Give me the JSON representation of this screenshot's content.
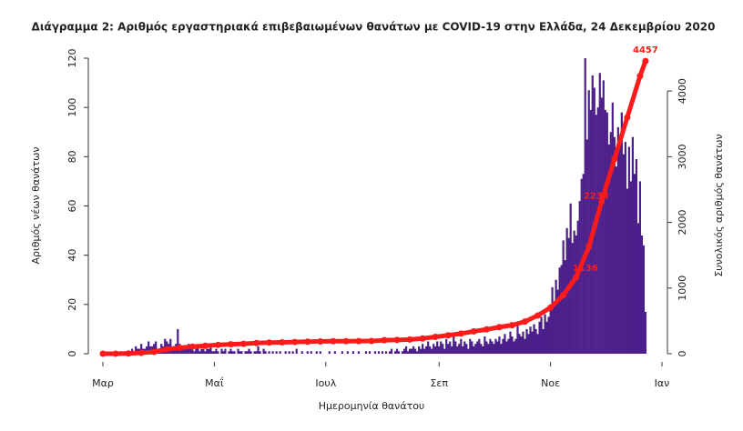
{
  "chart_data": {
    "type": "bar",
    "title": "Διάγραμμα 2: Αριθμός εργαστηριακά επιβεβαιωμένων θανάτων με COVID-19 στην Ελλάδα, 24 Δεκεμβρίου 2020",
    "xlabel": "Ημερομηνία θανάτου",
    "ylabel": "Αριθμός νέων θανάτων",
    "y2label": "Συνολικός αριθμός θανάτων",
    "color": "#4b1e8a",
    "x": [
      0,
      1,
      2,
      3,
      4,
      5,
      6,
      7,
      8,
      9,
      10,
      11,
      12,
      13,
      14,
      15,
      16,
      17,
      18,
      19,
      20,
      21,
      22,
      23,
      24,
      25,
      26,
      27,
      28,
      29,
      30,
      31,
      32,
      33,
      34,
      35,
      36,
      37,
      38,
      39,
      40,
      41,
      42,
      43,
      44,
      45,
      46,
      47,
      48,
      49,
      50,
      51,
      52,
      53,
      54,
      55,
      56,
      57,
      58,
      59,
      60,
      61,
      62,
      63,
      64,
      65,
      66,
      67,
      68,
      69,
      70,
      71,
      72,
      73,
      74,
      75,
      76,
      77,
      78,
      79,
      80,
      81,
      82,
      83,
      84,
      85,
      86,
      87,
      88,
      89,
      90,
      91,
      92,
      93,
      94,
      95,
      96,
      97,
      98,
      99,
      100,
      101,
      102,
      103,
      104,
      105,
      106,
      107,
      108,
      109,
      110,
      111,
      112,
      113,
      114,
      115,
      116,
      117,
      118,
      119,
      120,
      121,
      122,
      123,
      124,
      125,
      126,
      127,
      128,
      129,
      130,
      131,
      132,
      133,
      134,
      135,
      136,
      137,
      138,
      139,
      140,
      141,
      142,
      143,
      144,
      145,
      146,
      147,
      148,
      149,
      150,
      151,
      152,
      153,
      154,
      155,
      156,
      157,
      158,
      159,
      160,
      161,
      162,
      163,
      164,
      165,
      166,
      167,
      168,
      169,
      170,
      171,
      172,
      173,
      174,
      175,
      176,
      177,
      178,
      179,
      180,
      181,
      182,
      183,
      184,
      185,
      186,
      187,
      188,
      189,
      190,
      191,
      192,
      193,
      194,
      195,
      196,
      197,
      198,
      199,
      200,
      201,
      202,
      203,
      204,
      205,
      206,
      207,
      208,
      209,
      210,
      211,
      212,
      213,
      214,
      215,
      216,
      217,
      218,
      219,
      220,
      221,
      222,
      223,
      224,
      225,
      226,
      227,
      228,
      229,
      230,
      231,
      232,
      233,
      234,
      235,
      236,
      237,
      238,
      239,
      240,
      241,
      242,
      243,
      244,
      245,
      246,
      247,
      248,
      249,
      250,
      251,
      252,
      253,
      254,
      255,
      256,
      257,
      258,
      259,
      260,
      261,
      262,
      263,
      264,
      265,
      266,
      267,
      268,
      269,
      270,
      271,
      272,
      273,
      274,
      275,
      276,
      277,
      278,
      279,
      280,
      281,
      282,
      283,
      284,
      285,
      286,
      287,
      288,
      289,
      290,
      291,
      292,
      293,
      294,
      295,
      296,
      297
    ],
    "values": [
      0,
      0,
      0,
      0,
      0,
      0,
      0,
      0,
      0,
      0,
      1,
      0,
      1,
      0,
      1,
      1,
      2,
      1,
      3,
      2,
      2,
      4,
      2,
      2,
      3,
      5,
      3,
      3,
      4,
      5,
      2,
      2,
      4,
      3,
      6,
      5,
      4,
      6,
      3,
      3,
      4,
      10,
      4,
      3,
      3,
      3,
      2,
      4,
      2,
      3,
      1,
      2,
      3,
      1,
      2,
      2,
      1,
      2,
      2,
      3,
      1,
      1,
      2,
      1,
      0,
      2,
      1,
      2,
      0,
      1,
      2,
      1,
      1,
      0,
      2,
      1,
      1,
      0,
      1,
      1,
      2,
      1,
      0,
      1,
      1,
      3,
      1,
      0,
      2,
      1,
      0,
      1,
      0,
      1,
      0,
      1,
      0,
      1,
      0,
      0,
      1,
      0,
      1,
      0,
      1,
      0,
      2,
      0,
      0,
      1,
      0,
      0,
      1,
      0,
      1,
      0,
      0,
      1,
      0,
      1,
      0,
      0,
      0,
      0,
      1,
      0,
      0,
      1,
      0,
      0,
      0,
      1,
      0,
      0,
      1,
      0,
      0,
      1,
      0,
      0,
      1,
      0,
      0,
      0,
      1,
      0,
      1,
      0,
      0,
      1,
      0,
      1,
      0,
      1,
      0,
      1,
      0,
      1,
      2,
      0,
      1,
      2,
      1,
      0,
      1,
      2,
      3,
      1,
      2,
      2,
      3,
      2,
      1,
      3,
      2,
      4,
      2,
      3,
      5,
      3,
      2,
      4,
      3,
      5,
      3,
      5,
      4,
      2,
      6,
      4,
      5,
      3,
      8,
      5,
      3,
      4,
      6,
      3,
      5,
      4,
      2,
      6,
      5,
      3,
      4,
      5,
      6,
      4,
      3,
      7,
      5,
      4,
      6,
      5,
      4,
      6,
      5,
      7,
      4,
      6,
      8,
      5,
      6,
      9,
      7,
      5,
      6,
      12,
      8,
      7,
      9,
      6,
      10,
      8,
      11,
      9,
      12,
      10,
      8,
      13,
      15,
      10,
      16,
      13,
      15,
      20,
      27,
      21,
      30,
      26,
      35,
      36,
      46,
      38,
      51,
      47,
      61,
      45,
      50,
      48,
      54,
      62,
      71,
      73,
      120,
      87,
      107,
      99,
      113,
      108,
      97,
      100,
      114,
      104,
      111,
      99,
      98,
      85,
      90,
      102,
      88,
      76,
      92,
      85,
      98,
      81,
      86,
      67,
      84,
      70,
      88,
      73,
      79,
      53,
      70,
      48,
      44,
      17
    ],
    "line": {
      "type": "line",
      "axis": "y2",
      "color": "#ff1a1a",
      "x": [
        0,
        7,
        14,
        21,
        28,
        35,
        42,
        49,
        56,
        63,
        70,
        77,
        84,
        91,
        98,
        105,
        112,
        119,
        126,
        133,
        140,
        147,
        154,
        161,
        168,
        175,
        182,
        189,
        196,
        203,
        210,
        217,
        224,
        231,
        238,
        245,
        252,
        259,
        266,
        273,
        280,
        287,
        294,
        297
      ],
      "values": [
        0,
        0,
        3,
        13,
        28,
        70,
        90,
        108,
        121,
        134,
        144,
        151,
        162,
        169,
        173,
        179,
        183,
        187,
        190,
        191,
        192,
        193,
        206,
        210,
        216,
        232,
        256,
        280,
        306,
        340,
        370,
        405,
        434,
        490,
        581,
        702,
        893,
        1165,
        1630,
        2321,
        2964,
        3598,
        4228,
        4457
      ]
    },
    "annotations": [
      {
        "x": 264,
        "y": 1136,
        "text": "1136"
      },
      {
        "x": 270,
        "y": 2233,
        "text": "2233"
      },
      {
        "x": 297,
        "y": 4457,
        "text": "4457"
      }
    ],
    "xlim": [
      -3,
      306
    ],
    "xticks": [
      {
        "value": 0,
        "label": "Μαρ"
      },
      {
        "value": 61,
        "label": "Μαΐ"
      },
      {
        "value": 122,
        "label": "Ιουλ"
      },
      {
        "value": 184,
        "label": "Σεπ"
      },
      {
        "value": 245,
        "label": "Νοε"
      },
      {
        "value": 306,
        "label": "Ιαν"
      }
    ],
    "ylim": [
      0,
      120
    ],
    "yticks": [
      0,
      20,
      40,
      60,
      80,
      100,
      120
    ],
    "y2lim": [
      0,
      4500
    ],
    "y2ticks": [
      0,
      1000,
      2000,
      3000,
      4000
    ]
  }
}
